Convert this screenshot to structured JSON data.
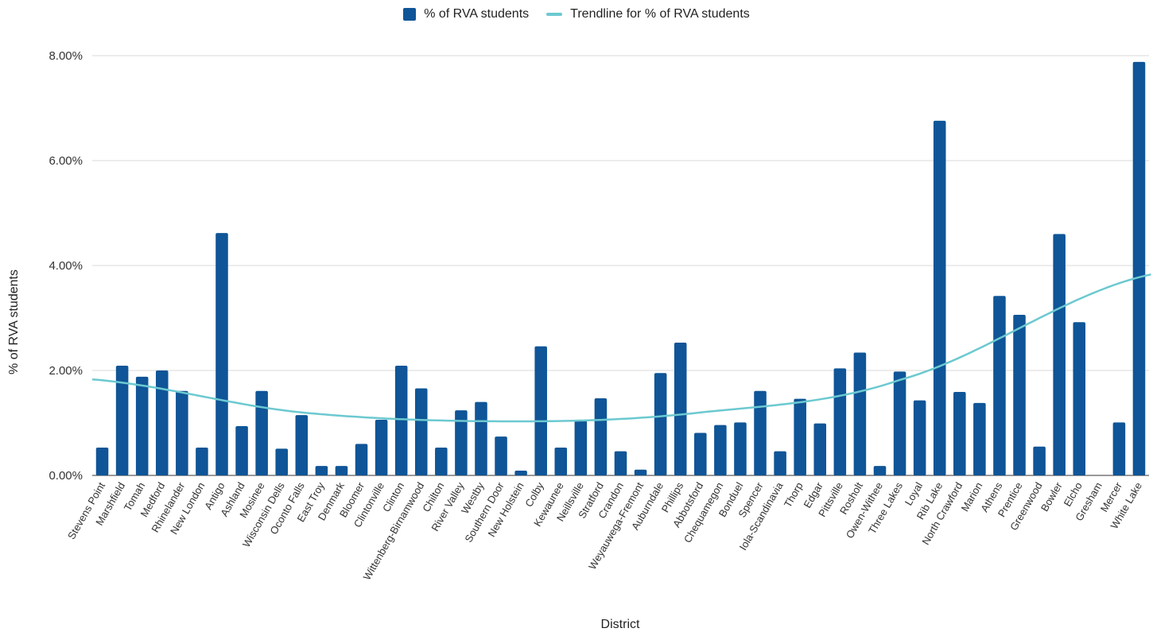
{
  "chart_data": {
    "type": "bar",
    "xlabel": "District",
    "ylabel": "% of RVA students",
    "ylim": [
      0,
      8
    ],
    "yticks": [
      "0.00%",
      "2.00%",
      "4.00%",
      "6.00%",
      "8.00%"
    ],
    "grid": true,
    "legend_position": "top-center",
    "colors": {
      "bar": "#0f5597",
      "trendline": "#6cc9d0",
      "grid": "#d9d9d9"
    },
    "categories": [
      "Stevens Point",
      "Marshfield",
      "Tomah",
      "Medford",
      "Rhinelander",
      "New London",
      "Antigo",
      "Ashland",
      "Mosinee",
      "Wisconsin Dells",
      "Oconto Falls",
      "East Troy",
      "Denmark",
      "Bloomer",
      "Clintonville",
      "Clinton",
      "Wittenberg-Birnamwood",
      "Chilton",
      "River Valley",
      "Westby",
      "Southern Door",
      "New Holstein",
      "Colby",
      "Kewaunee",
      "Neillsville",
      "Stratford",
      "Crandon",
      "Weyauwega-Fremont",
      "Auburndale",
      "Phillips",
      "Abbotsford",
      "Chequamegon",
      "Bonduel",
      "Spencer",
      "Iola-Scandinavia",
      "Thorp",
      "Edgar",
      "Pittsville",
      "Rosholt",
      "Owen-Withee",
      "Three Lakes",
      "Loyal",
      "Rib Lake",
      "North Crawford",
      "Marion",
      "Athens",
      "Prentice",
      "Greenwood",
      "Bowler",
      "Elcho",
      "Gresham",
      "Mercer",
      "White Lake"
    ],
    "series": [
      {
        "name": "% of RVA students",
        "values": [
          0.53,
          2.09,
          1.88,
          2.0,
          1.61,
          0.53,
          4.62,
          0.94,
          1.61,
          0.51,
          1.15,
          0.18,
          0.18,
          0.6,
          1.06,
          2.09,
          1.66,
          0.53,
          1.24,
          1.4,
          0.74,
          0.09,
          2.46,
          0.53,
          1.04,
          1.47,
          0.46,
          0.11,
          1.95,
          2.53,
          0.81,
          0.96,
          1.01,
          1.61,
          0.46,
          1.46,
          0.99,
          2.04,
          2.34,
          0.18,
          1.98,
          1.43,
          6.76,
          1.59,
          1.38,
          3.42,
          3.06,
          0.55,
          4.6,
          2.92,
          0.0,
          1.01,
          7.88
        ]
      },
      {
        "name": "Trendline for % of RVA students",
        "type": "line",
        "trend": "polynomial",
        "start": -0.5,
        "end": 52.6,
        "points": [
          {
            "x": -0.5,
            "y": 1.83
          },
          {
            "x": 10,
            "y": 1.2
          },
          {
            "x": 20.9,
            "y": 1.03
          },
          {
            "x": 30,
            "y": 1.2
          },
          {
            "x": 40,
            "y": 1.82
          },
          {
            "x": 52.6,
            "y": 3.83
          }
        ]
      }
    ]
  }
}
